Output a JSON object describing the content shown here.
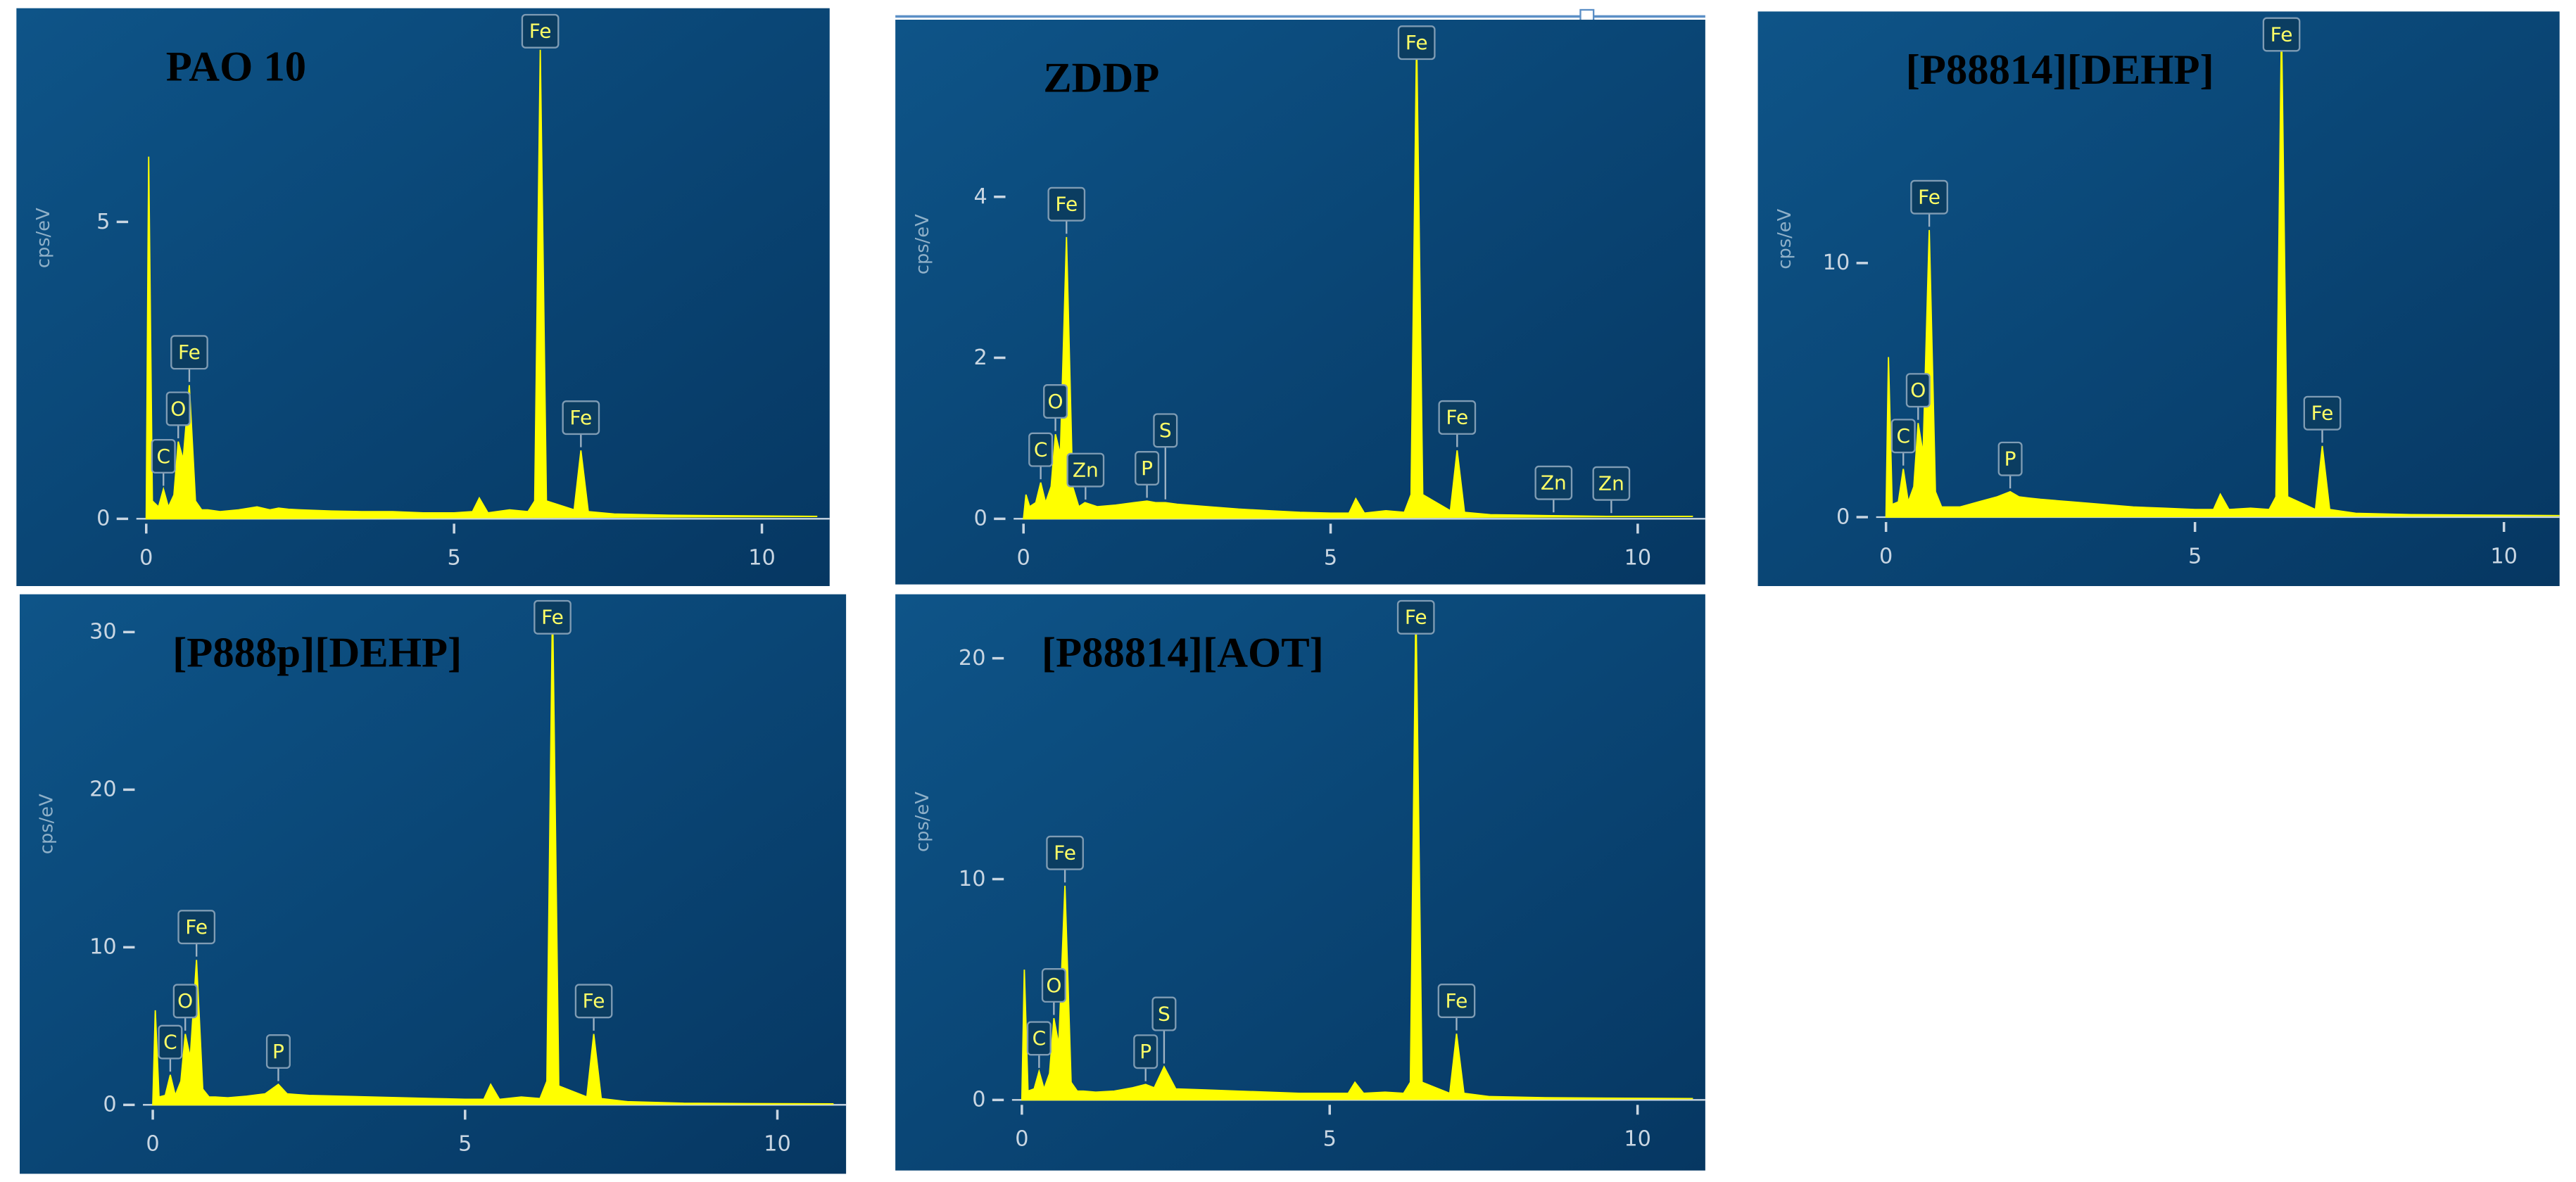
{
  "chart_data": [
    {
      "type": "area",
      "title": "PAO 10",
      "y_label": "cps/eV",
      "color": "#ffff00",
      "x": [
        0,
        0.04,
        0.1,
        0.2,
        0.28,
        0.36,
        0.45,
        0.52,
        0.6,
        0.7,
        0.8,
        0.9,
        1,
        1.2,
        1.5,
        1.8,
        2.01,
        2.15,
        2.31,
        2.5,
        3,
        3.5,
        4,
        4.5,
        5,
        5.3,
        5.41,
        5.55,
        5.9,
        6.2,
        6.31,
        6.4,
        6.5,
        6.95,
        7.06,
        7.18,
        7.6,
        8.5,
        9.5,
        10.9
      ],
      "values": [
        0,
        6.1,
        0.3,
        0.2,
        0.5,
        0.2,
        0.4,
        1.3,
        1.0,
        2.25,
        0.3,
        0.15,
        0.15,
        0.12,
        0.15,
        0.2,
        0.15,
        0.18,
        0.16,
        0.15,
        0.13,
        0.12,
        0.12,
        0.1,
        0.1,
        0.12,
        0.35,
        0.1,
        0.15,
        0.12,
        0.3,
        7.9,
        0.3,
        0.15,
        1.15,
        0.12,
        0.08,
        0.06,
        0.05,
        0.04
      ],
      "xlim": [
        0,
        11.1
      ],
      "ylim": [
        0,
        8.6
      ],
      "xticks": [
        0,
        5,
        10
      ],
      "yticks": [
        0,
        5
      ],
      "annotations": [
        {
          "text": "C",
          "x": 0.28
        },
        {
          "text": "O",
          "x": 0.52
        },
        {
          "text": "Fe",
          "x": 0.7
        },
        {
          "text": "Fe",
          "x": 6.4
        },
        {
          "text": "Fe",
          "x": 7.06
        }
      ]
    },
    {
      "type": "area",
      "title": "ZDDP",
      "y_label": "cps/eV",
      "color": "#ffff00",
      "x": [
        0,
        0.04,
        0.1,
        0.2,
        0.28,
        0.36,
        0.45,
        0.52,
        0.6,
        0.7,
        0.8,
        0.9,
        1,
        1.2,
        1.5,
        1.8,
        2.01,
        2.15,
        2.31,
        2.5,
        3,
        3.5,
        4,
        4.5,
        5,
        5.3,
        5.41,
        5.55,
        5.9,
        6.2,
        6.31,
        6.4,
        6.5,
        6.95,
        7.06,
        7.18,
        7.6,
        8.5,
        9.5,
        10.9
      ],
      "values": [
        0,
        0.3,
        0.15,
        0.2,
        0.45,
        0.2,
        0.4,
        1.05,
        0.8,
        3.5,
        0.4,
        0.15,
        0.2,
        0.15,
        0.17,
        0.2,
        0.22,
        0.2,
        0.2,
        0.18,
        0.15,
        0.12,
        0.1,
        0.08,
        0.07,
        0.07,
        0.25,
        0.07,
        0.1,
        0.08,
        0.3,
        6.0,
        0.3,
        0.1,
        0.85,
        0.08,
        0.05,
        0.04,
        0.03,
        0.03
      ],
      "xlim": [
        0,
        11.1
      ],
      "ylim": [
        0,
        6.2
      ],
      "xticks": [
        0,
        5,
        10
      ],
      "yticks": [
        0,
        2,
        4
      ],
      "annotations": [
        {
          "text": "C",
          "x": 0.28
        },
        {
          "text": "O",
          "x": 0.52
        },
        {
          "text": "Fe",
          "x": 0.7
        },
        {
          "text": "Zn",
          "x": 1.01
        },
        {
          "text": "P",
          "x": 2.01
        },
        {
          "text": "S",
          "x": 2.31
        },
        {
          "text": "Fe",
          "x": 6.4
        },
        {
          "text": "Fe",
          "x": 7.06
        },
        {
          "text": "Zn",
          "x": 8.63
        },
        {
          "text": "Zn",
          "x": 9.57
        }
      ]
    },
    {
      "type": "area",
      "title": "[P88814][DEHP]",
      "y_label": "cps/eV",
      "color": "#ffff00",
      "x": [
        0,
        0.04,
        0.1,
        0.2,
        0.28,
        0.36,
        0.45,
        0.52,
        0.6,
        0.7,
        0.8,
        0.9,
        1,
        1.2,
        1.5,
        1.8,
        2.01,
        2.15,
        2.31,
        2.5,
        3,
        3.5,
        4,
        4.5,
        5,
        5.3,
        5.41,
        5.55,
        5.9,
        6.2,
        6.31,
        6.4,
        6.5,
        6.95,
        7.06,
        7.18,
        7.6,
        8.5,
        9.5,
        10.9
      ],
      "values": [
        0,
        6.3,
        0.5,
        0.6,
        1.9,
        0.6,
        1.2,
        3.7,
        2.5,
        11.3,
        1.0,
        0.4,
        0.4,
        0.4,
        0.6,
        0.8,
        1.0,
        0.8,
        0.75,
        0.7,
        0.6,
        0.5,
        0.4,
        0.35,
        0.3,
        0.3,
        0.9,
        0.3,
        0.35,
        0.3,
        0.8,
        19.5,
        0.8,
        0.3,
        2.8,
        0.3,
        0.15,
        0.1,
        0.08,
        0.06
      ],
      "xlim": [
        0,
        10.9
      ],
      "ylim": [
        0,
        19.9
      ],
      "xticks": [
        0,
        5,
        10
      ],
      "yticks": [
        0,
        10
      ],
      "annotations": [
        {
          "text": "C",
          "x": 0.28
        },
        {
          "text": "O",
          "x": 0.52
        },
        {
          "text": "Fe",
          "x": 0.7
        },
        {
          "text": "P",
          "x": 2.01
        },
        {
          "text": "Fe",
          "x": 6.4
        },
        {
          "text": "Fe",
          "x": 7.06
        }
      ]
    },
    {
      "type": "area",
      "title": "[P888p][DEHP]",
      "y_label": "cps/eV",
      "color": "#ffff00",
      "x": [
        0,
        0.04,
        0.1,
        0.2,
        0.28,
        0.36,
        0.45,
        0.52,
        0.6,
        0.7,
        0.8,
        0.9,
        1,
        1.2,
        1.5,
        1.8,
        2.01,
        2.15,
        2.31,
        2.5,
        3,
        3.5,
        4,
        4.5,
        5,
        5.3,
        5.41,
        5.55,
        5.9,
        6.2,
        6.31,
        6.4,
        6.5,
        6.95,
        7.06,
        7.18,
        7.6,
        8.5,
        9.5,
        10.9
      ],
      "values": [
        0,
        6.0,
        0.5,
        0.6,
        1.9,
        0.6,
        1.5,
        4.5,
        3.0,
        9.2,
        1.0,
        0.5,
        0.5,
        0.45,
        0.55,
        0.7,
        1.3,
        0.7,
        0.65,
        0.6,
        0.55,
        0.5,
        0.45,
        0.4,
        0.35,
        0.35,
        1.3,
        0.35,
        0.5,
        0.4,
        1.5,
        32,
        1.2,
        0.5,
        4.5,
        0.4,
        0.2,
        0.1,
        0.08,
        0.06
      ],
      "xlim": [
        0,
        11.1
      ],
      "ylim": [
        0,
        32.4
      ],
      "xticks": [
        0,
        5,
        10
      ],
      "yticks": [
        0,
        10,
        20,
        30
      ],
      "annotations": [
        {
          "text": "C",
          "x": 0.28
        },
        {
          "text": "O",
          "x": 0.52
        },
        {
          "text": "Fe",
          "x": 0.7
        },
        {
          "text": "P",
          "x": 2.01
        },
        {
          "text": "Fe",
          "x": 6.4
        },
        {
          "text": "Fe",
          "x": 7.06
        }
      ]
    },
    {
      "type": "area",
      "title": "[P88814][AOT]",
      "y_label": "cps/eV",
      "color": "#ffff00",
      "x": [
        0,
        0.04,
        0.1,
        0.2,
        0.28,
        0.36,
        0.45,
        0.52,
        0.6,
        0.7,
        0.8,
        0.9,
        1,
        1.2,
        1.5,
        1.8,
        2.01,
        2.15,
        2.31,
        2.5,
        3,
        3.5,
        4,
        4.5,
        5,
        5.3,
        5.41,
        5.55,
        5.9,
        6.2,
        6.31,
        6.4,
        6.5,
        6.95,
        7.06,
        7.18,
        7.6,
        8.5,
        9.5,
        10.9
      ],
      "values": [
        0,
        5.9,
        0.4,
        0.5,
        1.3,
        0.5,
        1.2,
        3.7,
        2.5,
        9.7,
        0.8,
        0.4,
        0.4,
        0.35,
        0.4,
        0.55,
        0.7,
        0.55,
        1.5,
        0.5,
        0.45,
        0.4,
        0.35,
        0.3,
        0.3,
        0.3,
        0.8,
        0.3,
        0.35,
        0.3,
        0.8,
        22.5,
        0.8,
        0.3,
        3.0,
        0.3,
        0.15,
        0.1,
        0.08,
        0.06
      ],
      "xlim": [
        0,
        11.1
      ],
      "ylim": [
        0,
        22.9
      ],
      "xticks": [
        0,
        5,
        10
      ],
      "yticks": [
        0,
        10,
        20
      ],
      "annotations": [
        {
          "text": "C",
          "x": 0.28
        },
        {
          "text": "O",
          "x": 0.52
        },
        {
          "text": "Fe",
          "x": 0.7
        },
        {
          "text": "P",
          "x": 2.01
        },
        {
          "text": "S",
          "x": 2.31
        },
        {
          "text": "Fe",
          "x": 6.4
        },
        {
          "text": "Fe",
          "x": 7.06
        }
      ]
    }
  ]
}
